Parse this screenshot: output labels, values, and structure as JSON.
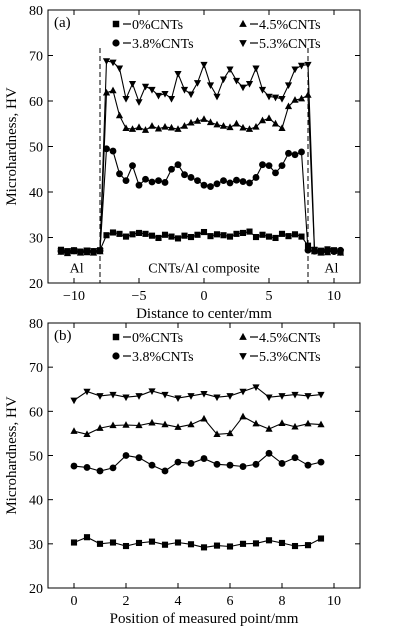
{
  "chart_data": [
    {
      "type": "line",
      "panel_label": "(a)",
      "xlabel": "Distance to center/mm",
      "ylabel": "Microhardness, HV",
      "xlim": [
        -12,
        12
      ],
      "ylim": [
        20,
        80
      ],
      "xticks": [
        -10,
        -5,
        0,
        5,
        10
      ],
      "xtick_labels": [
        "−10",
        "−5",
        "0",
        "5",
        "10"
      ],
      "yticks": [
        20,
        30,
        40,
        50,
        60,
        70,
        80
      ],
      "grid": false,
      "legend_position": "top",
      "boundary_lines_x": [
        -8,
        8
      ],
      "annotations": [
        {
          "text": "Al",
          "x": -9.8,
          "y": 22.3
        },
        {
          "text": "CNTs/Al composite",
          "x": 0,
          "y": 22.3
        },
        {
          "text": "Al",
          "x": 9.8,
          "y": 22.3
        }
      ],
      "series": [
        {
          "name": "0%CNTs",
          "marker": "square",
          "x": [
            -11,
            -10.5,
            -10,
            -9.5,
            -9,
            -8.5,
            -8,
            -7.5,
            -7,
            -6.5,
            -6,
            -5.5,
            -5,
            -4.5,
            -4,
            -3.5,
            -3,
            -2.5,
            -2,
            -1.5,
            -1,
            -0.5,
            0,
            0.5,
            1,
            1.5,
            2,
            2.5,
            3,
            3.5,
            4,
            4.5,
            5,
            5.5,
            6,
            6.5,
            7,
            7.5,
            8,
            8.5,
            9,
            9.5,
            10,
            10.5
          ],
          "y": [
            27.3,
            27.0,
            27.2,
            26.9,
            27.1,
            27.0,
            27.2,
            30.5,
            31.1,
            30.8,
            30.2,
            30.7,
            31.0,
            30.8,
            30.4,
            29.9,
            30.6,
            30.2,
            29.8,
            30.4,
            30.1,
            30.6,
            31.2,
            30.3,
            30.7,
            30.5,
            30.2,
            30.8,
            31.0,
            31.3,
            30.1,
            30.6,
            30.2,
            29.9,
            30.8,
            30.3,
            30.7,
            30.2,
            28.2,
            27.3,
            27.1,
            27.4,
            27.2,
            26.8
          ]
        },
        {
          "name": "4.5%CNTs",
          "marker": "triangle-up",
          "x": [
            -11,
            -10.5,
            -10,
            -9.5,
            -9,
            -8.5,
            -8,
            -7.5,
            -7,
            -6.5,
            -6,
            -5.5,
            -5,
            -4.5,
            -4,
            -3.5,
            -3,
            -2.5,
            -2,
            -1.5,
            -1,
            -0.5,
            0,
            0.5,
            1,
            1.5,
            2,
            2.5,
            3,
            3.5,
            4,
            4.5,
            5,
            5.5,
            6,
            6.5,
            7,
            7.5,
            8,
            8.5,
            9,
            9.5,
            10,
            10.5
          ],
          "y": [
            26.8,
            26.5,
            26.9,
            26.6,
            26.7,
            26.6,
            26.9,
            61.8,
            62.3,
            56.8,
            54.0,
            53.8,
            54.2,
            53.6,
            54.5,
            53.9,
            54.3,
            54.1,
            53.8,
            54.5,
            55.2,
            55.6,
            56.0,
            55.3,
            54.8,
            54.5,
            54.2,
            55.0,
            54.1,
            53.8,
            54.3,
            55.7,
            56.2,
            55.0,
            54.0,
            58.8,
            60.2,
            60.5,
            61.3,
            26.9,
            26.6,
            26.7,
            27.0,
            26.6
          ]
        },
        {
          "name": "3.8%CNTs",
          "marker": "circle",
          "x": [
            -11,
            -10.5,
            -10,
            -9.5,
            -9,
            -8.5,
            -8,
            -7.5,
            -7,
            -6.5,
            -6,
            -5.5,
            -5,
            -4.5,
            -4,
            -3.5,
            -3,
            -2.5,
            -2,
            -1.5,
            -1,
            -0.5,
            0,
            0.5,
            1,
            1.5,
            2,
            2.5,
            3,
            3.5,
            4,
            4.5,
            5,
            5.5,
            6,
            6.5,
            7,
            7.5,
            8,
            8.5,
            9,
            9.5,
            10,
            10.5
          ],
          "y": [
            27.0,
            26.7,
            27.1,
            26.8,
            27.0,
            26.9,
            27.1,
            49.5,
            49.0,
            44.0,
            42.5,
            45.8,
            41.5,
            42.8,
            42.2,
            42.5,
            42.1,
            45.0,
            46.0,
            43.8,
            43.2,
            42.5,
            41.5,
            41.2,
            41.8,
            42.5,
            42.0,
            42.6,
            42.3,
            42.0,
            43.2,
            46.0,
            45.8,
            44.2,
            45.8,
            48.5,
            48.2,
            48.8,
            27.2,
            27.0,
            26.8,
            27.1,
            26.9,
            27.2
          ]
        },
        {
          "name": "5.3%CNTs",
          "marker": "triangle-down",
          "x": [
            -11,
            -10.5,
            -10,
            -9.5,
            -9,
            -8.5,
            -8,
            -7.5,
            -7,
            -6.5,
            -6,
            -5.5,
            -5,
            -4.5,
            -4,
            -3.5,
            -3,
            -2.5,
            -2,
            -1.5,
            -1,
            -0.5,
            0,
            0.5,
            1,
            1.5,
            2,
            2.5,
            3,
            3.5,
            4,
            4.5,
            5,
            5.5,
            6,
            6.5,
            7,
            7.5,
            8,
            8.5,
            9,
            9.5,
            10,
            10.5
          ],
          "y": [
            27.0,
            26.8,
            27.1,
            26.9,
            27.2,
            27.0,
            27.1,
            68.8,
            68.5,
            67.2,
            60.5,
            63.8,
            59.8,
            63.2,
            62.5,
            61.2,
            61.6,
            60.5,
            66.0,
            62.5,
            61.5,
            64.0,
            68.0,
            63.5,
            61.0,
            64.8,
            67.0,
            64.5,
            63.0,
            63.8,
            67.2,
            62.5,
            61.0,
            60.8,
            60.5,
            63.5,
            67.0,
            67.8,
            68.0,
            27.2,
            26.9,
            27.0,
            27.1,
            26.8
          ]
        }
      ]
    },
    {
      "type": "line",
      "panel_label": "(b)",
      "xlabel": "Position of measured point/mm",
      "ylabel": "Microhardness, HV",
      "xlim": [
        -1,
        11
      ],
      "ylim": [
        20,
        80
      ],
      "xticks": [
        0,
        2,
        4,
        6,
        8,
        10
      ],
      "xtick_labels": [
        "0",
        "2",
        "4",
        "6",
        "8",
        "10"
      ],
      "yticks": [
        20,
        30,
        40,
        50,
        60,
        70,
        80
      ],
      "grid": false,
      "legend_position": "top",
      "series": [
        {
          "name": "0%CNTs",
          "marker": "square",
          "x": [
            0,
            0.5,
            1,
            1.5,
            2,
            2.5,
            3,
            3.5,
            4,
            4.5,
            5,
            5.5,
            6,
            6.5,
            7,
            7.5,
            8,
            8.5,
            9,
            9.5
          ],
          "y": [
            30.3,
            31.5,
            30.0,
            30.3,
            29.5,
            30.2,
            30.5,
            29.8,
            30.3,
            29.9,
            29.2,
            29.6,
            29.4,
            30.0,
            30.1,
            30.8,
            30.2,
            29.5,
            29.7,
            31.2
          ]
        },
        {
          "name": "4.5%CNTs",
          "marker": "triangle-up",
          "x": [
            0,
            0.5,
            1,
            1.5,
            2,
            2.5,
            3,
            3.5,
            4,
            4.5,
            5,
            5.5,
            6,
            6.5,
            7,
            7.5,
            8,
            8.5,
            9,
            9.5
          ],
          "y": [
            55.5,
            54.8,
            56.2,
            56.8,
            56.9,
            56.8,
            57.4,
            57.0,
            56.4,
            57.0,
            58.3,
            54.8,
            55.0,
            58.8,
            57.2,
            56.0,
            57.3,
            56.5,
            57.2,
            57.0
          ]
        },
        {
          "name": "3.8%CNTs",
          "marker": "circle",
          "x": [
            0,
            0.5,
            1,
            1.5,
            2,
            2.5,
            3,
            3.5,
            4,
            4.5,
            5,
            5.5,
            6,
            6.5,
            7,
            7.5,
            8,
            8.5,
            9,
            9.5
          ],
          "y": [
            47.6,
            47.3,
            46.5,
            47.2,
            50.0,
            49.5,
            47.8,
            46.5,
            48.5,
            48.2,
            49.3,
            48.0,
            47.8,
            47.5,
            48.0,
            50.5,
            48.2,
            49.5,
            47.8,
            48.5
          ]
        },
        {
          "name": "5.3%CNTs",
          "marker": "triangle-down",
          "x": [
            0,
            0.5,
            1,
            1.5,
            2,
            2.5,
            3,
            3.5,
            4,
            4.5,
            5,
            5.5,
            6,
            6.5,
            7,
            7.5,
            8,
            8.5,
            9,
            9.5
          ],
          "y": [
            62.5,
            64.5,
            63.5,
            63.8,
            63.2,
            63.5,
            64.6,
            63.8,
            63.0,
            63.5,
            64.0,
            63.2,
            63.5,
            64.5,
            65.5,
            63.2,
            63.5,
            63.8,
            63.5,
            63.8
          ]
        }
      ]
    }
  ]
}
